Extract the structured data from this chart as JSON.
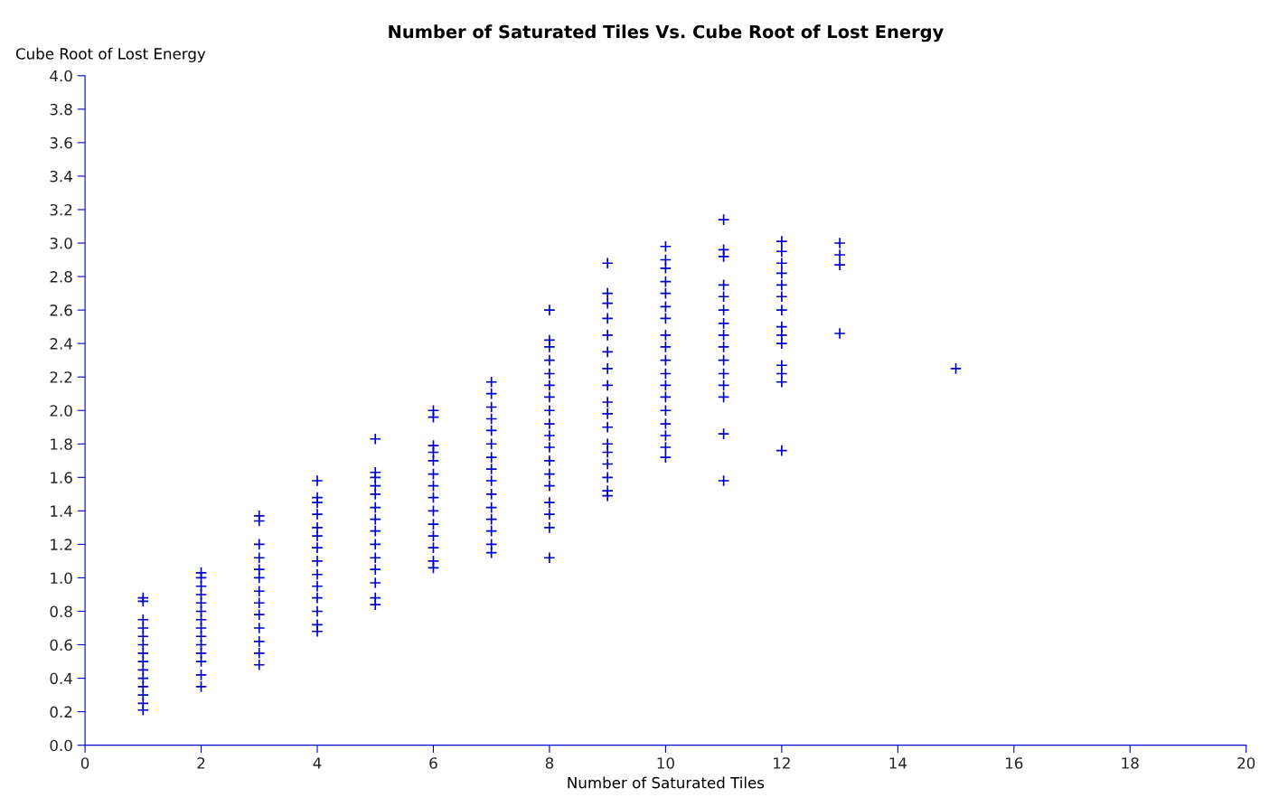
{
  "chart_data": {
    "type": "scatter",
    "title": "Number of Saturated Tiles Vs. Cube Root of Lost Energy",
    "xlabel": "Number of Saturated Tiles",
    "ylabel": "Cube Root of Lost Energy",
    "marker": "cross",
    "grid": false,
    "legend": false,
    "xlim": [
      0,
      20
    ],
    "xticks": [
      0,
      2,
      4,
      6,
      8,
      10,
      12,
      14,
      16,
      18,
      20
    ],
    "ylim": [
      0,
      4.0
    ],
    "yticks": [
      {
        "value": 0,
        "label": "0.0"
      },
      {
        "value": 0.2,
        "label": "0.2"
      },
      {
        "value": 0.4,
        "label": "0.4"
      },
      {
        "value": 0.6,
        "label": "0.6"
      },
      {
        "value": 0.8,
        "label": "0.8"
      },
      {
        "value": 1.0,
        "label": "1.0"
      },
      {
        "value": 1.2,
        "label": "1.2"
      },
      {
        "value": 1.4,
        "label": "1.4"
      },
      {
        "value": 1.6,
        "label": "1.6"
      },
      {
        "value": 1.8,
        "label": "1.8"
      },
      {
        "value": 2.0,
        "label": "2.0"
      },
      {
        "value": 2.2,
        "label": "2.2"
      },
      {
        "value": 2.4,
        "label": "2.4"
      },
      {
        "value": 2.6,
        "label": "2.6"
      },
      {
        "value": 2.8,
        "label": "2.8"
      },
      {
        "value": 3.0,
        "label": "3.0"
      },
      {
        "value": 3.2,
        "label": "3.2"
      },
      {
        "value": 3.4,
        "label": "3.4"
      },
      {
        "value": 3.6,
        "label": "3.6"
      },
      {
        "value": 3.8,
        "label": "3.8"
      },
      {
        "value": 4.0,
        "label": "4.0"
      }
    ],
    "series": [
      {
        "color": "#0000cc",
        "x": [
          1,
          1,
          1,
          1,
          1,
          1,
          1,
          1,
          1,
          1,
          1,
          1,
          1,
          1,
          2,
          2,
          2,
          2,
          2,
          2,
          2,
          2,
          2,
          2,
          2,
          2,
          2,
          2,
          3,
          3,
          3,
          3,
          3,
          3,
          3,
          3,
          3,
          3,
          3,
          3,
          3,
          4,
          4,
          4,
          4,
          4,
          4,
          4,
          4,
          4,
          4,
          4,
          4,
          4,
          4,
          5,
          5,
          5,
          5,
          5,
          5,
          5,
          5,
          5,
          5,
          5,
          5,
          5,
          5,
          6,
          6,
          6,
          6,
          6,
          6,
          6,
          6,
          6,
          6,
          6,
          6,
          6,
          6,
          7,
          7,
          7,
          7,
          7,
          7,
          7,
          7,
          7,
          7,
          7,
          7,
          7,
          7,
          7,
          8,
          8,
          8,
          8,
          8,
          8,
          8,
          8,
          8,
          8,
          8,
          8,
          8,
          8,
          8,
          8,
          8,
          8,
          9,
          9,
          9,
          9,
          9,
          9,
          9,
          9,
          9,
          9,
          9,
          9,
          9,
          9,
          9,
          9,
          9,
          10,
          10,
          10,
          10,
          10,
          10,
          10,
          10,
          10,
          10,
          10,
          10,
          10,
          10,
          10,
          10,
          10,
          10,
          11,
          11,
          11,
          11,
          11,
          11,
          11,
          11,
          11,
          11,
          11,
          11,
          11,
          11,
          11,
          12,
          12,
          12,
          12,
          12,
          12,
          12,
          12,
          12,
          12,
          12,
          12,
          12,
          12,
          13,
          13,
          13,
          13,
          15
        ],
        "values": [
          0.21,
          0.25,
          0.3,
          0.35,
          0.4,
          0.45,
          0.5,
          0.55,
          0.6,
          0.65,
          0.7,
          0.75,
          0.86,
          0.88,
          0.35,
          0.42,
          0.5,
          0.55,
          0.6,
          0.65,
          0.7,
          0.75,
          0.8,
          0.85,
          0.9,
          0.95,
          1.0,
          1.03,
          0.48,
          0.55,
          0.62,
          0.7,
          0.78,
          0.85,
          0.92,
          1.0,
          1.05,
          1.12,
          1.2,
          1.34,
          1.37,
          0.68,
          0.72,
          0.8,
          0.88,
          0.95,
          1.02,
          1.1,
          1.18,
          1.25,
          1.3,
          1.38,
          1.45,
          1.48,
          1.58,
          0.84,
          0.88,
          0.97,
          1.05,
          1.12,
          1.2,
          1.28,
          1.35,
          1.42,
          1.5,
          1.55,
          1.6,
          1.63,
          1.83,
          1.06,
          1.1,
          1.18,
          1.25,
          1.32,
          1.4,
          1.48,
          1.55,
          1.62,
          1.7,
          1.75,
          1.79,
          1.96,
          2.0,
          1.15,
          1.2,
          1.28,
          1.35,
          1.42,
          1.5,
          1.58,
          1.65,
          1.72,
          1.8,
          1.88,
          1.95,
          2.02,
          2.1,
          2.17,
          1.12,
          1.3,
          1.38,
          1.45,
          1.55,
          1.62,
          1.7,
          1.78,
          1.85,
          1.92,
          2.0,
          2.08,
          2.15,
          2.22,
          2.3,
          2.38,
          2.42,
          2.6,
          1.49,
          1.52,
          1.6,
          1.68,
          1.75,
          1.8,
          1.9,
          1.98,
          2.05,
          2.15,
          2.25,
          2.35,
          2.45,
          2.55,
          2.64,
          2.7,
          2.88,
          1.72,
          1.78,
          1.85,
          1.92,
          2.0,
          2.08,
          2.15,
          2.22,
          2.3,
          2.38,
          2.45,
          2.55,
          2.62,
          2.7,
          2.77,
          2.85,
          2.9,
          2.98,
          1.58,
          1.86,
          2.08,
          2.15,
          2.22,
          2.3,
          2.38,
          2.45,
          2.52,
          2.6,
          2.68,
          2.75,
          2.92,
          2.96,
          3.14,
          1.76,
          2.17,
          2.22,
          2.27,
          2.4,
          2.45,
          2.5,
          2.6,
          2.68,
          2.75,
          2.82,
          2.88,
          2.95,
          3.01,
          2.46,
          2.87,
          2.93,
          3.0,
          2.25
        ]
      }
    ]
  }
}
